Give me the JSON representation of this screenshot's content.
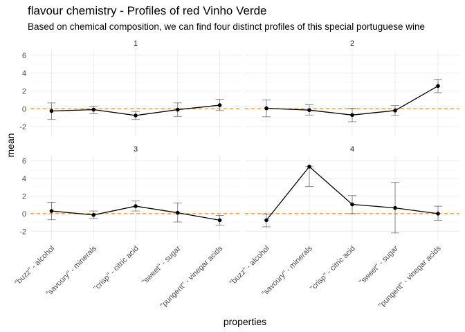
{
  "title": "flavour chemistry - Profiles of red Vinho Verde",
  "subtitle": "Based on chemical composition, we can find four distinct profiles of this special portuguese wine",
  "chart_data": {
    "type": "line",
    "xlabel": "properties",
    "ylabel": "mean",
    "categories": [
      "\"buzz\" - alcohol",
      "\"savoury\" - minerals",
      "\"crisp\" - citric acid",
      "\"sweet\" - sugar",
      "\"pungent\" - vinegar acids"
    ],
    "ylim": [
      -3,
      6.6
    ],
    "yticks": [
      -2,
      0,
      2,
      4,
      6
    ],
    "reference_line": 0,
    "grid": true,
    "colors": {
      "line": "#000000",
      "point": "#000000",
      "errorbar": "#595959",
      "reference": "#ff8c00",
      "grid": "#ebebeb"
    },
    "panels": [
      {
        "label": "1",
        "values": [
          -0.25,
          -0.1,
          -0.75,
          -0.1,
          0.4
        ],
        "lower": [
          -1.2,
          -0.55,
          -1.2,
          -0.85,
          -0.2
        ],
        "upper": [
          0.65,
          0.3,
          -0.3,
          0.65,
          1.05
        ]
      },
      {
        "label": "2",
        "values": [
          0.05,
          -0.15,
          -0.7,
          -0.2,
          2.55
        ],
        "lower": [
          -0.9,
          -0.7,
          -1.45,
          -0.75,
          1.8
        ],
        "upper": [
          1.0,
          0.45,
          0.05,
          0.35,
          3.3
        ]
      },
      {
        "label": "3",
        "values": [
          0.3,
          -0.15,
          0.85,
          0.1,
          -0.75
        ],
        "lower": [
          -0.7,
          -0.55,
          0.3,
          -0.95,
          -1.3
        ],
        "upper": [
          1.3,
          0.3,
          1.45,
          1.2,
          -0.2
        ]
      },
      {
        "label": "4",
        "values": [
          -0.75,
          5.35,
          1.05,
          0.65,
          0.0
        ],
        "lower": [
          -1.5,
          3.1,
          0.0,
          -2.2,
          -0.75
        ],
        "upper": [
          -0.05,
          5.35,
          2.05,
          3.55,
          0.85
        ]
      }
    ]
  }
}
